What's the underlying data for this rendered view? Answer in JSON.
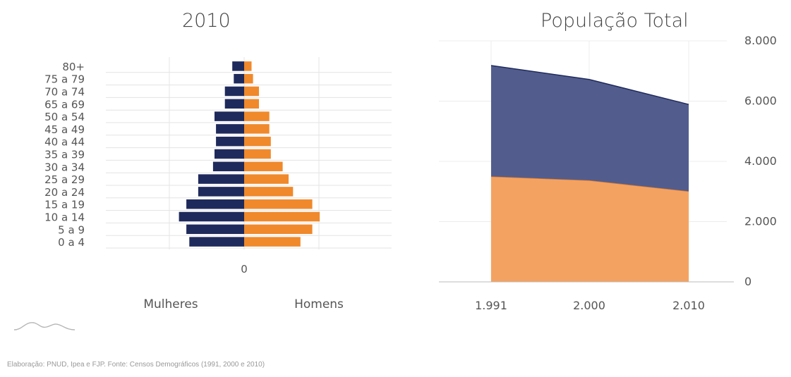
{
  "chart_data": [
    {
      "type": "bar",
      "subtype": "population-pyramid",
      "title": "2010",
      "categories": [
        "0 a 4",
        "5 a 9",
        "10 a 14",
        "15 a 19",
        "20 a 24",
        "25 a 29",
        "30 a 34",
        "35 a 39",
        "40 a 44",
        "45 a 49",
        "50 a 54",
        "65 a 69",
        "70 a 74",
        "75 a 79",
        "80+"
      ],
      "series": [
        {
          "name": "Mulheres",
          "color": "#1f2a5c",
          "values": [
            185,
            195,
            220,
            195,
            155,
            155,
            105,
            100,
            95,
            95,
            100,
            65,
            65,
            35,
            40
          ]
        },
        {
          "name": "Homens",
          "color": "#f0892b",
          "values": [
            190,
            230,
            255,
            230,
            165,
            150,
            130,
            90,
            90,
            85,
            85,
            50,
            50,
            30,
            25
          ]
        }
      ],
      "x_center_label": "0",
      "left_label": "Mulheres",
      "right_label": "Homens",
      "grid": true
    },
    {
      "type": "area",
      "stacked": true,
      "title": "População Total",
      "x": [
        "1.991",
        "2.000",
        "2.010"
      ],
      "series": [
        {
          "color": "#f4a261",
          "values": [
            3500,
            3370,
            3010
          ]
        },
        {
          "color": "#525d8e",
          "values": [
            3680,
            3350,
            2880
          ]
        }
      ],
      "y_ticks": [
        "0",
        "2.000",
        "4.000",
        "6.000",
        "8.000"
      ],
      "ylim": [
        0,
        8000
      ],
      "y_axis_position": "right",
      "grid": true
    }
  ],
  "footer": "Elaboração: PNUD, Ipea e FJP. Fonte: Censos Demográficos (1991, 2000 e 2010)"
}
